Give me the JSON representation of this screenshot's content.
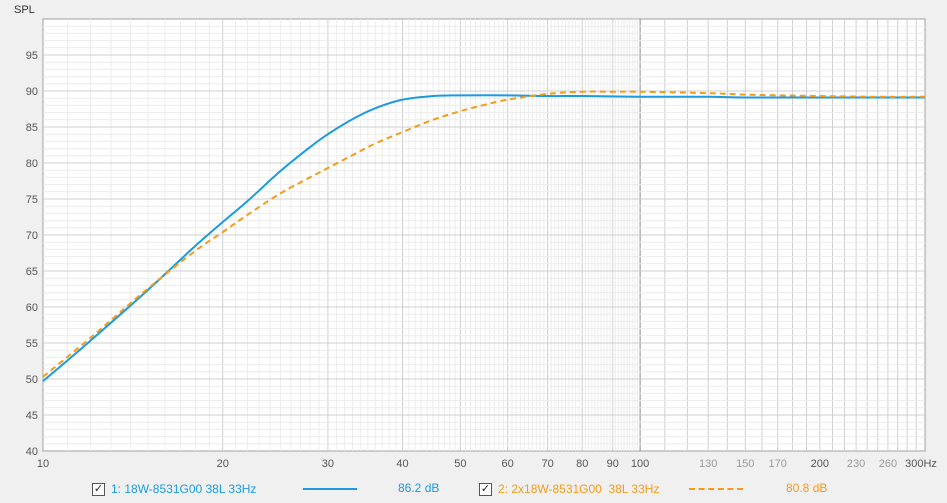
{
  "chart_data": {
    "type": "line",
    "ylabel": "SPL",
    "xlabel": "",
    "x_scale": "log",
    "xlim": [
      10,
      300
    ],
    "ylim": [
      40,
      100
    ],
    "grid": true,
    "x_ticks": [
      {
        "value": 10,
        "label": "10"
      },
      {
        "value": 20,
        "label": "20"
      },
      {
        "value": 30,
        "label": "30"
      },
      {
        "value": 40,
        "label": "40"
      },
      {
        "value": 50,
        "label": "50"
      },
      {
        "value": 60,
        "label": "60"
      },
      {
        "value": 70,
        "label": "70"
      },
      {
        "value": 80,
        "label": "80"
      },
      {
        "value": 90,
        "label": "90"
      },
      {
        "value": 100,
        "label": "100"
      },
      {
        "value": 130,
        "label": "130"
      },
      {
        "value": 150,
        "label": "150"
      },
      {
        "value": 170,
        "label": "170"
      },
      {
        "value": 200,
        "label": "200"
      },
      {
        "value": 230,
        "label": "230"
      },
      {
        "value": 260,
        "label": "260"
      },
      {
        "value": 300,
        "label": "300Hz"
      }
    ],
    "y_ticks": [
      40,
      45,
      50,
      55,
      60,
      65,
      70,
      75,
      80,
      85,
      90,
      95
    ],
    "series": [
      {
        "name": "1: 18W-8531G00 38L 33Hz",
        "color": "#1a9be0",
        "style": "solid",
        "legend_value": "86.2 dB",
        "x": [
          10,
          12,
          15,
          18,
          20,
          22,
          25,
          28,
          30,
          33,
          36,
          40,
          45,
          50,
          60,
          70,
          80,
          100,
          130,
          150,
          200,
          250,
          300
        ],
        "y": [
          49.7,
          55.3,
          62.4,
          68.5,
          71.8,
          74.7,
          78.9,
          82.2,
          84.0,
          86.1,
          87.6,
          88.8,
          89.3,
          89.4,
          89.4,
          89.3,
          89.3,
          89.2,
          89.2,
          89.1,
          89.1,
          89.1,
          89.1
        ]
      },
      {
        "name": "2: 2x18W-8531G00  38L 33Hz",
        "color": "#f39c1b",
        "style": "dashed",
        "legend_value": "80.8 dB",
        "x": [
          10,
          12,
          15,
          18,
          20,
          22,
          25,
          28,
          30,
          33,
          36,
          40,
          45,
          50,
          55,
          60,
          70,
          80,
          90,
          100,
          130,
          150,
          200,
          250,
          300
        ],
        "y": [
          50.3,
          55.7,
          62.6,
          67.8,
          70.4,
          72.8,
          75.8,
          78.0,
          79.3,
          81.1,
          82.7,
          84.3,
          86.0,
          87.2,
          88.1,
          88.8,
          89.6,
          89.9,
          89.9,
          89.9,
          89.7,
          89.5,
          89.3,
          89.2,
          89.2
        ]
      }
    ]
  }
}
